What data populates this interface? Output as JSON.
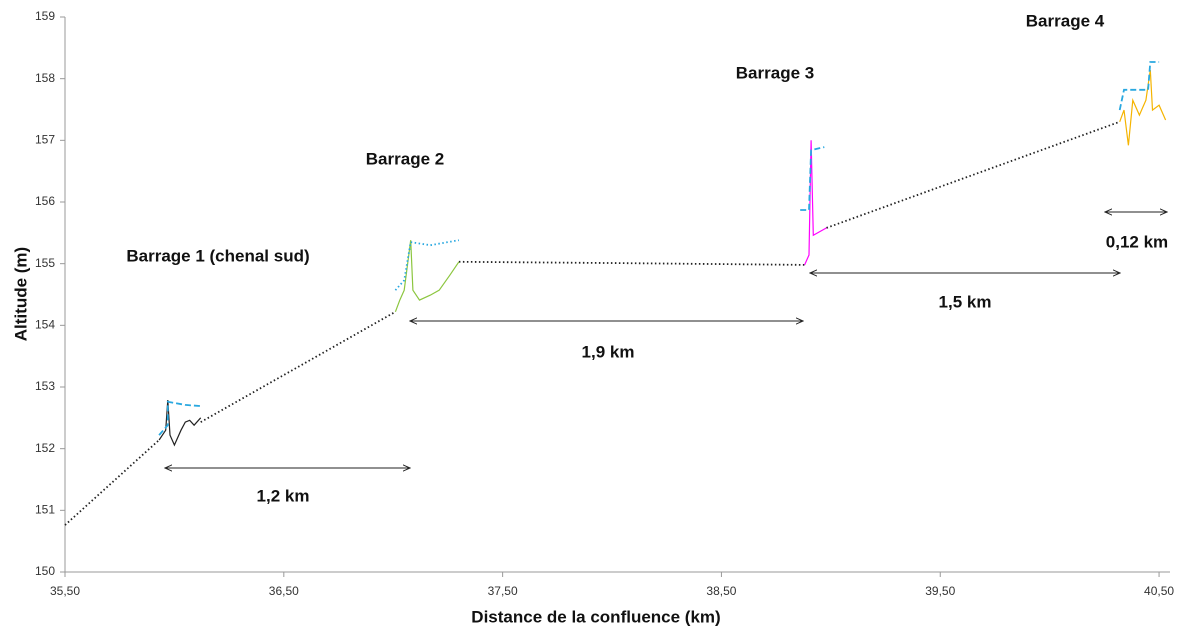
{
  "chart_data": {
    "type": "line",
    "xlabel": "Distance de la confluence (km)",
    "ylabel": "Altitude (m)",
    "xlim": [
      35.5,
      40.55
    ],
    "ylim": [
      150,
      159
    ],
    "xticks": [
      {
        "value": 35.5,
        "label": "35,50"
      },
      {
        "value": 36.5,
        "label": "36,50"
      },
      {
        "value": 37.5,
        "label": "37,50"
      },
      {
        "value": 38.5,
        "label": "38,50"
      },
      {
        "value": 39.5,
        "label": "39,50"
      },
      {
        "value": 40.5,
        "label": "40,50"
      }
    ],
    "yticks": [
      150,
      151,
      152,
      153,
      154,
      155,
      156,
      157,
      158,
      159
    ],
    "grid": false,
    "series": [
      {
        "color": "#222222",
        "style": "dotted",
        "x": [
          35.5,
          35.93,
          null,
          36.12,
          37.01,
          null,
          37.3,
          38.03,
          38.88,
          null,
          38.98,
          40.32
        ],
        "values": [
          150.76,
          152.14,
          null,
          152.43,
          154.22,
          null,
          155.03,
          155.01,
          154.98,
          null,
          155.58,
          157.3
        ]
      },
      {
        "color": "#222222",
        "style": "solid",
        "x": [
          35.93,
          35.96,
          35.97,
          35.98,
          36.0,
          36.03,
          36.05,
          36.07,
          36.09,
          36.12
        ],
        "values": [
          152.14,
          152.3,
          152.79,
          152.22,
          152.06,
          152.3,
          152.43,
          152.46,
          152.38,
          152.5
        ]
      },
      {
        "color": "#29a8e0",
        "style": "dashed",
        "x": [
          35.93,
          35.97,
          35.97,
          36.05,
          36.12
        ],
        "values": [
          152.22,
          152.38,
          152.76,
          152.71,
          152.69
        ]
      },
      {
        "color": "#8cc63f",
        "style": "solid",
        "x": [
          37.01,
          37.03,
          37.05,
          37.08,
          37.09,
          37.12,
          37.17,
          37.21,
          37.26,
          37.3
        ],
        "values": [
          154.22,
          154.41,
          154.57,
          155.38,
          154.57,
          154.41,
          154.49,
          154.57,
          154.82,
          155.03
        ]
      },
      {
        "color": "#29a8e0",
        "style": "dotted",
        "x": [
          37.01,
          37.05,
          37.08,
          37.17,
          37.3
        ],
        "values": [
          154.57,
          154.73,
          155.35,
          155.3,
          155.38
        ]
      },
      {
        "color": "#ff00ff",
        "style": "solid",
        "x": [
          38.88,
          38.9,
          38.91,
          38.92,
          38.98
        ],
        "values": [
          154.98,
          155.14,
          157.0,
          155.46,
          155.58
        ]
      },
      {
        "color": "#29a8e0",
        "style": "dashed",
        "x": [
          38.86,
          38.9,
          38.91,
          38.97
        ],
        "values": [
          155.87,
          155.87,
          156.84,
          156.89
        ]
      },
      {
        "color": "#f5b400",
        "style": "solid",
        "x": [
          40.32,
          40.34,
          40.36,
          40.38,
          40.41,
          40.44,
          40.46,
          40.47,
          40.5,
          40.53
        ],
        "values": [
          157.3,
          157.49,
          156.92,
          157.65,
          157.41,
          157.65,
          158.14,
          157.49,
          157.57,
          157.33
        ]
      },
      {
        "color": "#29a8e0",
        "style": "dashed",
        "x": [
          40.32,
          40.34,
          40.45,
          40.46,
          40.5
        ],
        "values": [
          157.49,
          157.82,
          157.82,
          158.27,
          158.27
        ]
      }
    ],
    "annotations": [
      "Barrage 1 (chenal sud)",
      "Barrage 2",
      "Barrage 3",
      "Barrage 4",
      "1,2 km",
      "1,9 km",
      "1,5 km",
      "0,12 km"
    ]
  }
}
